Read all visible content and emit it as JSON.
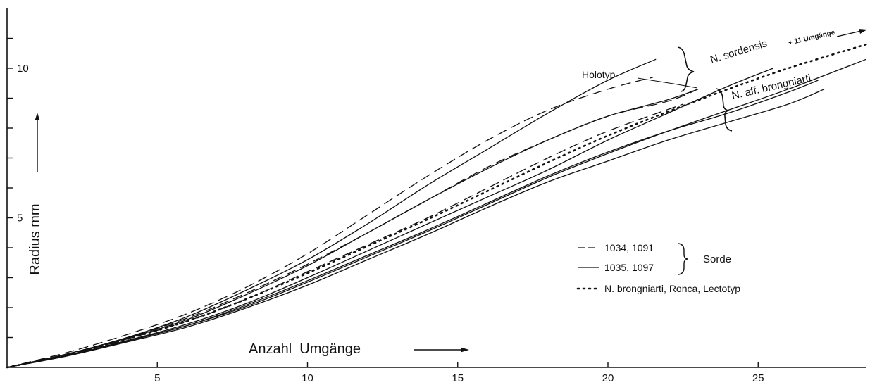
{
  "chart_data": {
    "type": "line",
    "xlabel": "Anzahl  Umgänge",
    "ylabel": "Radius  mm",
    "xlim": [
      0,
      28.6
    ],
    "ylim": [
      0,
      11
    ],
    "x_ticks": [
      5,
      10,
      15,
      20,
      25
    ],
    "y_tick_labels": [
      5,
      10
    ],
    "y_ticks_unlabeled": [
      1,
      2,
      3,
      4,
      6,
      7,
      8,
      9,
      11
    ],
    "grid": false,
    "legend_position": "lower-right",
    "legend": [
      {
        "label": "1034, 1091",
        "style": "dashed"
      },
      {
        "label": "1035, 1097",
        "style": "solid"
      },
      {
        "label": "N. brongniarti, Ronca, Lectotyp",
        "style": "dotted"
      }
    ],
    "legend_group_label": "Sorde",
    "annotations": {
      "holotyp": "Holotyp",
      "n_sordensis": "N. sordensis",
      "n_aff_brongniarti": "N. aff. brongniarti",
      "umgaenge": "+ 11 Umgänge"
    },
    "series": [
      {
        "style": "dashed",
        "group": "N. sordensis",
        "x": [
          0,
          2,
          4,
          6,
          8,
          10,
          12,
          14,
          16,
          18,
          20,
          21.5
        ],
        "y": [
          0,
          0.5,
          1.1,
          1.8,
          2.7,
          3.8,
          5.1,
          6.4,
          7.6,
          8.6,
          9.3,
          9.7
        ]
      },
      {
        "style": "solid",
        "group": "N. sordensis",
        "x": [
          0,
          2,
          4,
          6,
          8,
          10,
          12,
          14,
          16,
          18,
          20,
          21.6
        ],
        "y": [
          0,
          0.45,
          1.0,
          1.7,
          2.6,
          3.6,
          4.8,
          6.1,
          7.3,
          8.5,
          9.6,
          10.3
        ]
      },
      {
        "style": "dashed",
        "group": "N. sordensis",
        "x": [
          0,
          2,
          4,
          6,
          8,
          10,
          12,
          14,
          16,
          18,
          20,
          22,
          23
        ],
        "y": [
          0,
          0.45,
          1.0,
          1.65,
          2.5,
          3.45,
          4.5,
          5.6,
          6.7,
          7.6,
          8.4,
          8.9,
          9.3
        ]
      },
      {
        "style": "solid",
        "group": "N. sordensis",
        "x": [
          0,
          2,
          4,
          6,
          8,
          10,
          12,
          14,
          16,
          18,
          20,
          22,
          23
        ],
        "y": [
          0,
          0.45,
          0.98,
          1.6,
          2.45,
          3.4,
          4.5,
          5.6,
          6.65,
          7.6,
          8.4,
          8.95,
          9.3
        ]
      },
      {
        "style": "dashed",
        "group": "N. aff. brongniarti",
        "x": [
          0,
          2,
          4,
          6,
          8,
          10,
          12,
          14,
          16,
          18,
          20,
          22.5
        ],
        "y": [
          0,
          0.42,
          0.95,
          1.55,
          2.3,
          3.2,
          4.1,
          5.0,
          6.0,
          7.0,
          7.9,
          8.8
        ]
      },
      {
        "style": "solid",
        "group": "N. aff. brongniarti",
        "x": [
          0,
          2,
          4,
          6,
          8,
          10,
          12,
          14,
          16,
          18,
          20,
          22,
          24,
          25.5
        ],
        "y": [
          0,
          0.4,
          0.9,
          1.45,
          2.15,
          3.0,
          3.9,
          4.8,
          5.7,
          6.6,
          7.6,
          8.5,
          9.4,
          10.0
        ]
      },
      {
        "style": "solid",
        "group": "N. aff. brongniarti",
        "x": [
          0,
          2,
          4,
          6,
          8,
          10,
          12,
          14,
          16,
          18,
          20,
          22,
          24,
          26,
          27
        ],
        "y": [
          0,
          0.4,
          0.88,
          1.4,
          2.1,
          2.9,
          3.75,
          4.6,
          5.5,
          6.4,
          7.2,
          7.9,
          8.5,
          9.2,
          9.6
        ]
      },
      {
        "style": "solid",
        "group": "N. aff. brongniarti",
        "x": [
          0,
          2,
          4,
          6,
          8,
          10,
          12,
          14,
          16,
          18,
          20,
          22,
          24,
          26,
          28.6
        ],
        "y": [
          0,
          0.4,
          0.88,
          1.4,
          2.05,
          2.85,
          3.7,
          4.55,
          5.45,
          6.35,
          7.15,
          7.9,
          8.6,
          9.3,
          10.3
        ]
      },
      {
        "style": "solid",
        "group": "N. aff. brongniarti",
        "x": [
          0,
          2,
          4,
          6,
          8,
          10,
          12,
          14,
          16,
          18,
          20,
          22,
          24,
          26,
          27.2
        ],
        "y": [
          0,
          0.38,
          0.85,
          1.35,
          2.0,
          2.75,
          3.6,
          4.45,
          5.35,
          6.2,
          6.9,
          7.6,
          8.2,
          8.8,
          9.3
        ]
      },
      {
        "style": "dotted",
        "group": "N. brongniarti, Ronca, Lectotyp",
        "x": [
          0,
          2,
          4,
          6,
          8,
          10,
          12,
          14,
          16,
          18,
          20,
          22,
          24,
          26,
          28.6
        ],
        "y": [
          0,
          0.42,
          0.95,
          1.55,
          2.3,
          3.15,
          4.05,
          4.95,
          5.9,
          6.85,
          7.75,
          8.55,
          9.3,
          10.0,
          10.8
        ]
      }
    ]
  }
}
